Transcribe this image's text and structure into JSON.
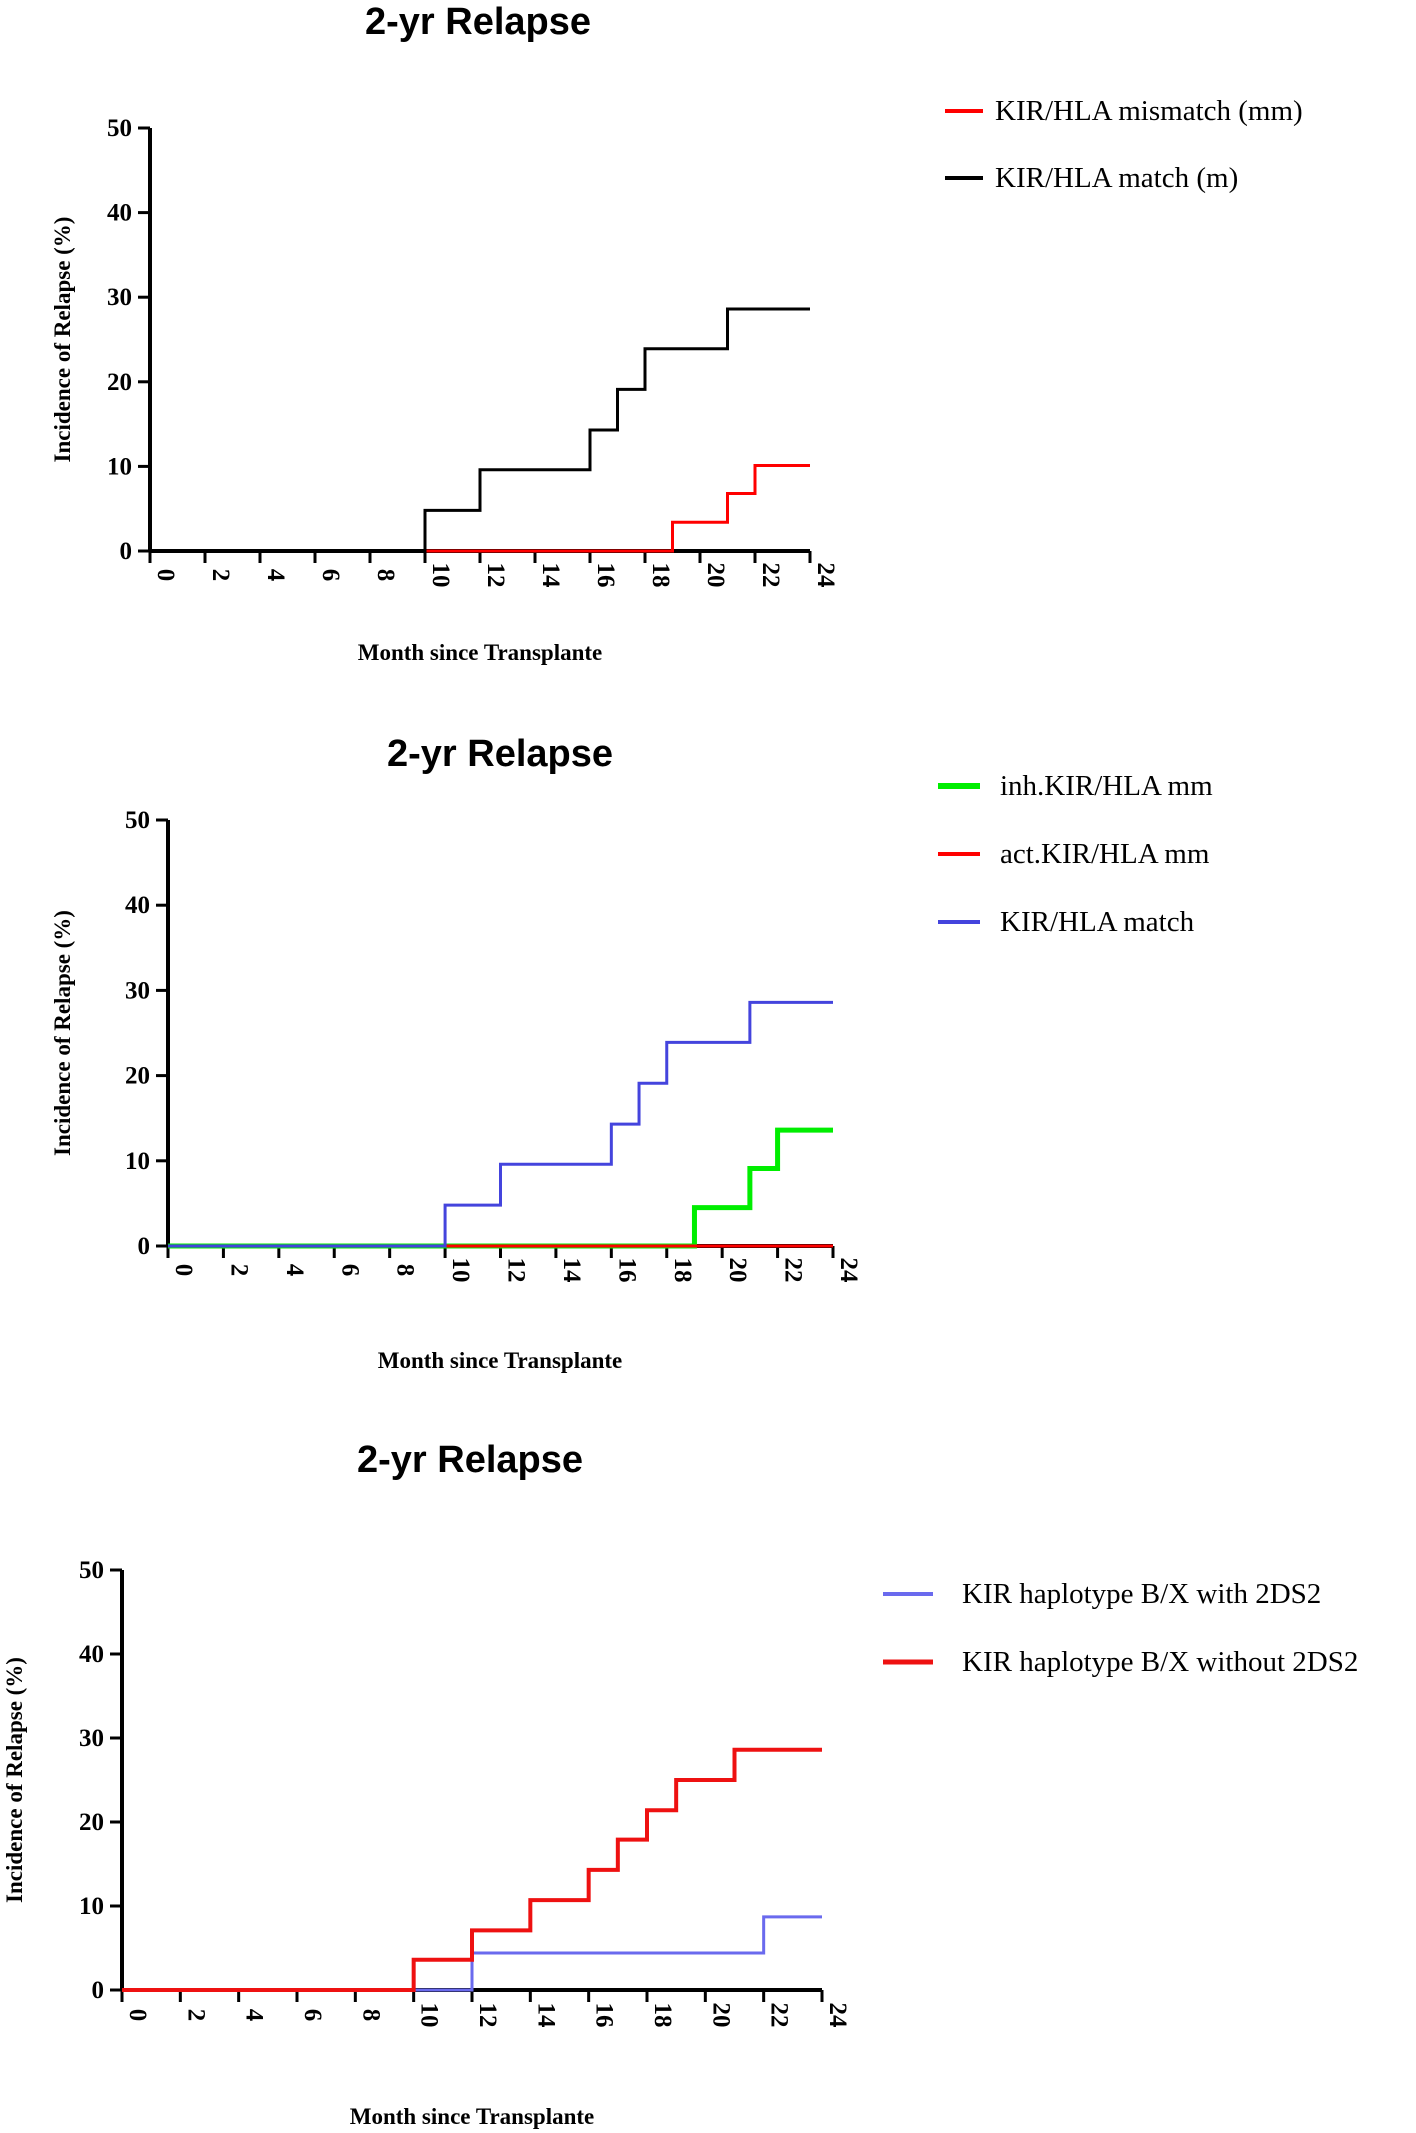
{
  "chart_data": [
    {
      "type": "line",
      "step": true,
      "title": "2-yr Relapse",
      "xlabel": "Month since Transplante",
      "ylabel": "Incidence of Relapse (%)",
      "xlim": [
        0,
        24
      ],
      "ylim": [
        0,
        50
      ],
      "xticks": [
        "0",
        "2",
        "4",
        "6",
        "8",
        "10",
        "12",
        "14",
        "16",
        "18",
        "20",
        "22",
        "24"
      ],
      "yticks": [
        "0",
        "10",
        "20",
        "30",
        "40",
        "50"
      ],
      "grid": false,
      "legend_position": "top-right",
      "series": [
        {
          "name": "KIR/HLA mismatch (mm)",
          "color": "#ff0000",
          "width": 3,
          "x": [
            0,
            19,
            21,
            22,
            24
          ],
          "y": [
            0,
            3.4,
            6.8,
            10.1,
            10.1
          ]
        },
        {
          "name": "KIR/HLA match (m)",
          "color": "#000000",
          "width": 3,
          "x": [
            0,
            10,
            12,
            16,
            17,
            18,
            21,
            24
          ],
          "y": [
            0,
            4.8,
            9.6,
            14.3,
            19.1,
            23.9,
            28.6,
            28.6
          ]
        }
      ]
    },
    {
      "type": "line",
      "step": true,
      "title": "2-yr Relapse",
      "xlabel": "Month since Transplante",
      "ylabel": "Incidence of Relapse (%)",
      "xlim": [
        0,
        24
      ],
      "ylim": [
        0,
        50
      ],
      "xticks": [
        "0",
        "2",
        "4",
        "6",
        "8",
        "10",
        "12",
        "14",
        "16",
        "18",
        "20",
        "22",
        "24"
      ],
      "yticks": [
        "0",
        "10",
        "20",
        "30",
        "40",
        "50"
      ],
      "grid": false,
      "legend_position": "top-right",
      "series": [
        {
          "name": "inh.KIR/HLA mm",
          "color": "#00ee00",
          "width": 5,
          "x": [
            0,
            19,
            21,
            22,
            24
          ],
          "y": [
            0,
            4.5,
            9.1,
            13.6,
            13.6
          ]
        },
        {
          "name": "act.KIR/HLA mm",
          "color": "#ff0000",
          "width": 3,
          "x": [
            0,
            24
          ],
          "y": [
            0,
            0
          ]
        },
        {
          "name": "KIR/HLA match",
          "color": "#4444dd",
          "width": 3,
          "x": [
            0,
            10,
            12,
            16,
            17,
            18,
            21,
            24
          ],
          "y": [
            0,
            4.8,
            9.6,
            14.3,
            19.1,
            23.9,
            28.6,
            28.6
          ]
        }
      ]
    },
    {
      "type": "line",
      "step": true,
      "title": "2-yr Relapse",
      "xlabel": "Month since Transplante",
      "ylabel": "Incidence of Relapse (%)",
      "xlim": [
        0,
        24
      ],
      "ylim": [
        0,
        50
      ],
      "xticks": [
        "0",
        "2",
        "4",
        "6",
        "8",
        "10",
        "12",
        "14",
        "16",
        "18",
        "20",
        "22",
        "24"
      ],
      "yticks": [
        "0",
        "10",
        "20",
        "30",
        "40",
        "50"
      ],
      "grid": false,
      "legend_position": "top-right",
      "series": [
        {
          "name": "KIR haplotype B/X with 2DS2",
          "color": "#6a6aee",
          "width": 3,
          "x": [
            0,
            12,
            22,
            24
          ],
          "y": [
            0,
            4.4,
            8.7,
            8.7
          ]
        },
        {
          "name": "KIR haplotype B/X without 2DS2",
          "color": "#ee1111",
          "width": 4,
          "x": [
            0,
            10,
            12,
            14,
            16,
            17,
            18,
            19,
            21,
            24
          ],
          "y": [
            0,
            3.6,
            7.1,
            10.7,
            14.3,
            17.9,
            21.4,
            25.0,
            28.6,
            28.6
          ]
        }
      ]
    }
  ]
}
